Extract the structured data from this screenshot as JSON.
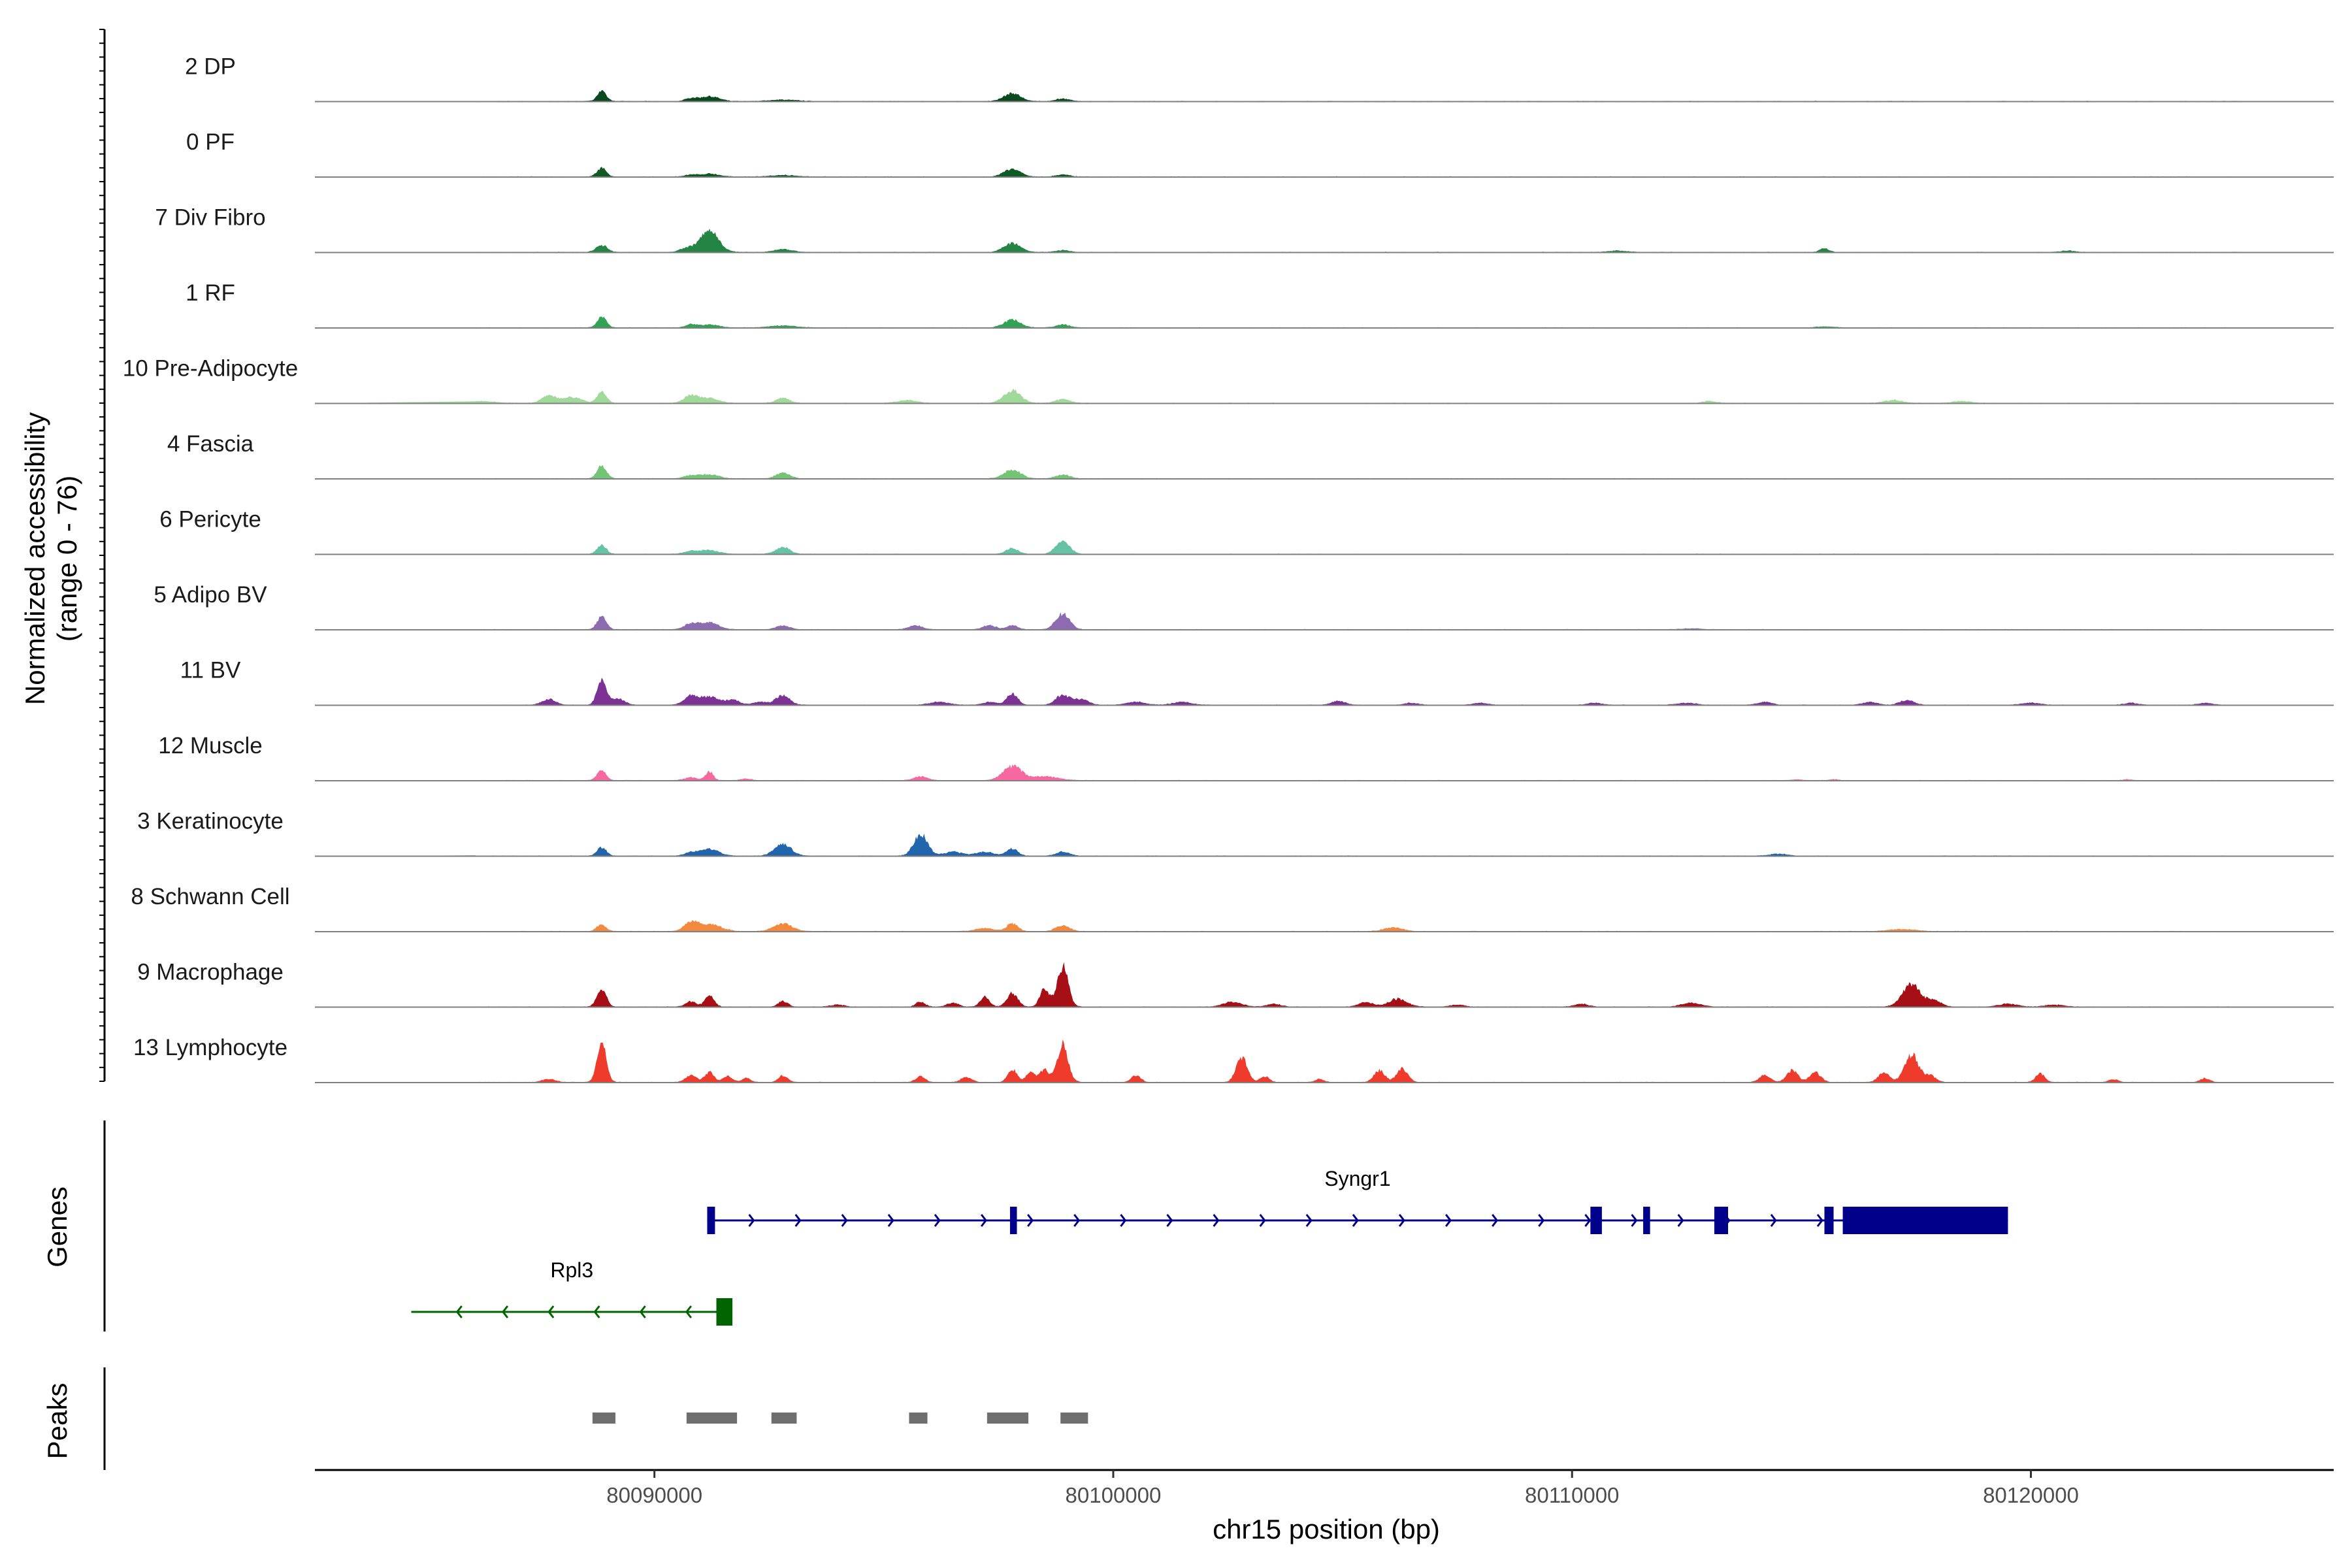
{
  "chart_data": {
    "type": "area",
    "ylabel_line1": "Normalized accessibility",
    "ylabel_line2": "(range 0 - 76)",
    "y_range": [
      0,
      76
    ],
    "xlabel": "chr15 position (bp)",
    "xlim": [
      80082600,
      80126600
    ],
    "xticks": [
      80090000,
      80100000,
      80110000,
      80120000
    ],
    "xtick_labels": [
      "80090000",
      "80100000",
      "80110000",
      "80120000"
    ],
    "tracks": [
      {
        "name": "2 DP",
        "color": "#0b4a1f",
        "peaks": [
          [
            80088850,
            10,
            100
          ],
          [
            80090800,
            3,
            120
          ],
          [
            80091200,
            5,
            200
          ],
          [
            80092800,
            1.5,
            300
          ],
          [
            80097800,
            8,
            180
          ],
          [
            80098900,
            2.5,
            150
          ]
        ]
      },
      {
        "name": "0 PF",
        "color": "#0f5a25",
        "peaks": [
          [
            80088850,
            9,
            100
          ],
          [
            80090800,
            2,
            120
          ],
          [
            80091200,
            3,
            200
          ],
          [
            80092800,
            1.5,
            300
          ],
          [
            80097800,
            8,
            180
          ],
          [
            80098900,
            2,
            150
          ]
        ]
      },
      {
        "name": "7 Div Fibro",
        "color": "#238443",
        "peaks": [
          [
            80088850,
            7,
            120
          ],
          [
            80091200,
            22,
            200
          ],
          [
            80090700,
            4,
            150
          ],
          [
            80092800,
            3,
            200
          ],
          [
            80097800,
            9,
            180
          ],
          [
            80098900,
            2,
            150
          ],
          [
            80115500,
            4,
            100
          ],
          [
            80111000,
            1.5,
            200
          ],
          [
            80120800,
            1.5,
            150
          ]
        ]
      },
      {
        "name": "1 RF",
        "color": "#31a354",
        "peaks": [
          [
            80088850,
            11,
            100
          ],
          [
            80090800,
            3,
            120
          ],
          [
            80091200,
            3,
            200
          ],
          [
            80092800,
            2,
            300
          ],
          [
            80097800,
            8,
            180
          ],
          [
            80098900,
            3,
            150
          ],
          [
            80115500,
            1,
            200
          ]
        ]
      },
      {
        "name": "10 Pre-Adipocyte",
        "color": "#a1d99b",
        "peaks": [
          [
            80088850,
            12,
            100
          ],
          [
            80087700,
            8,
            150
          ],
          [
            80088200,
            6,
            200
          ],
          [
            80090800,
            8,
            150
          ],
          [
            80091200,
            5,
            200
          ],
          [
            80092800,
            5,
            150
          ],
          [
            80095500,
            3,
            200
          ],
          [
            80097800,
            13,
            180
          ],
          [
            80098900,
            4,
            150
          ],
          [
            80113000,
            2,
            150
          ],
          [
            80117000,
            3,
            200
          ],
          [
            80118500,
            2,
            200
          ],
          [
            80085000,
            2,
            300
          ],
          [
            80086200,
            2,
            300
          ]
        ]
      },
      {
        "name": "4 Fascia",
        "color": "#74c476",
        "peaks": [
          [
            80088850,
            13,
            100
          ],
          [
            80090800,
            3,
            150
          ],
          [
            80091200,
            4,
            200
          ],
          [
            80092800,
            6,
            150
          ],
          [
            80097800,
            9,
            180
          ],
          [
            80098900,
            4,
            150
          ]
        ]
      },
      {
        "name": "6 Pericyte",
        "color": "#66c2a4",
        "peaks": [
          [
            80088850,
            9,
            100
          ],
          [
            80090800,
            3,
            150
          ],
          [
            80091200,
            4,
            200
          ],
          [
            80092800,
            7,
            150
          ],
          [
            80097800,
            6,
            130
          ],
          [
            80098900,
            13,
            150
          ]
        ]
      },
      {
        "name": "5 Adipo BV",
        "color": "#8c6bb1",
        "peaks": [
          [
            80088850,
            13,
            100
          ],
          [
            80090800,
            6,
            150
          ],
          [
            80091200,
            7,
            200
          ],
          [
            80092800,
            4,
            150
          ],
          [
            80095700,
            4,
            150
          ],
          [
            80097300,
            4,
            150
          ],
          [
            80097800,
            4,
            120
          ],
          [
            80098900,
            16,
            150
          ],
          [
            80112600,
            1,
            200
          ]
        ]
      },
      {
        "name": "11 BV",
        "color": "#7b3294",
        "peaks": [
          [
            80088850,
            25,
            100
          ],
          [
            80087700,
            6,
            150
          ],
          [
            80089200,
            6,
            150
          ],
          [
            80090800,
            9,
            150
          ],
          [
            80091200,
            8,
            200
          ],
          [
            80091700,
            5,
            150
          ],
          [
            80092800,
            10,
            150
          ],
          [
            80092300,
            3,
            150
          ],
          [
            80096200,
            3,
            200
          ],
          [
            80097300,
            3,
            150
          ],
          [
            80097800,
            11,
            120
          ],
          [
            80098900,
            10,
            150
          ],
          [
            80099300,
            6,
            150
          ],
          [
            80100500,
            3,
            200
          ],
          [
            80101500,
            3,
            200
          ],
          [
            80104900,
            4,
            150
          ],
          [
            80106500,
            2,
            150
          ],
          [
            80108000,
            2,
            150
          ],
          [
            80110500,
            2,
            150
          ],
          [
            80112500,
            2,
            200
          ],
          [
            80114200,
            3,
            150
          ],
          [
            80116500,
            3,
            150
          ],
          [
            80117300,
            5,
            150
          ],
          [
            80120000,
            2,
            200
          ],
          [
            80122200,
            2,
            150
          ],
          [
            80123800,
            2,
            150
          ]
        ]
      },
      {
        "name": "12 Muscle",
        "color": "#f768a1",
        "peaks": [
          [
            80088850,
            10,
            100
          ],
          [
            80090800,
            3,
            150
          ],
          [
            80091200,
            9,
            80
          ],
          [
            80092000,
            2,
            100
          ],
          [
            80095800,
            4,
            150
          ],
          [
            80097800,
            14,
            200
          ],
          [
            80098500,
            4,
            300
          ],
          [
            80114900,
            1,
            100
          ],
          [
            80115700,
            1,
            100
          ],
          [
            80122100,
            1,
            100
          ]
        ]
      },
      {
        "name": "3 Keratinocyte",
        "color": "#2166ac",
        "peaks": [
          [
            80088850,
            9,
            100
          ],
          [
            80090800,
            3,
            150
          ],
          [
            80091200,
            7,
            200
          ],
          [
            80092800,
            12,
            180
          ],
          [
            80095800,
            22,
            150
          ],
          [
            80096500,
            4,
            200
          ],
          [
            80097200,
            4,
            200
          ],
          [
            80097800,
            7,
            120
          ],
          [
            80098900,
            4,
            150
          ],
          [
            80114500,
            2,
            200
          ]
        ]
      },
      {
        "name": "8 Schwann Cell",
        "color": "#f3893e",
        "peaks": [
          [
            80088850,
            7,
            100
          ],
          [
            80090800,
            8,
            150
          ],
          [
            80091200,
            7,
            250
          ],
          [
            80092800,
            8,
            200
          ],
          [
            80097200,
            3,
            200
          ],
          [
            80097800,
            8,
            120
          ],
          [
            80098900,
            6,
            150
          ],
          [
            80106100,
            4,
            200
          ],
          [
            80117200,
            2,
            300
          ]
        ]
      },
      {
        "name": "9 Macrophage",
        "color": "#a50f15",
        "peaks": [
          [
            80088850,
            18,
            100
          ],
          [
            80090800,
            5,
            120
          ],
          [
            80091200,
            11,
            100
          ],
          [
            80092800,
            6,
            100
          ],
          [
            80094000,
            2,
            150
          ],
          [
            80095800,
            5,
            100
          ],
          [
            80096500,
            4,
            120
          ],
          [
            80097200,
            10,
            100
          ],
          [
            80097800,
            14,
            120
          ],
          [
            80098500,
            18,
            100
          ],
          [
            80098900,
            40,
            120
          ],
          [
            80102600,
            5,
            200
          ],
          [
            80103500,
            3,
            150
          ],
          [
            80106200,
            8,
            200
          ],
          [
            80105500,
            5,
            150
          ],
          [
            80107500,
            2,
            150
          ],
          [
            80110200,
            3,
            150
          ],
          [
            80112600,
            4,
            200
          ],
          [
            80117400,
            22,
            200
          ],
          [
            80117900,
            6,
            150
          ],
          [
            80119500,
            3,
            200
          ],
          [
            80120500,
            2,
            200
          ]
        ]
      },
      {
        "name": "13 Lymphocyte",
        "color": "#ef3b2c",
        "peaks": [
          [
            80088850,
            40,
            100
          ],
          [
            80084700,
            5,
            100
          ],
          [
            80085500,
            4,
            100
          ],
          [
            80087700,
            3,
            150
          ],
          [
            80090800,
            7,
            120
          ],
          [
            80091200,
            10,
            100
          ],
          [
            80091600,
            6,
            100
          ],
          [
            80092000,
            4,
            100
          ],
          [
            80092800,
            7,
            100
          ],
          [
            80095800,
            6,
            100
          ],
          [
            80096800,
            5,
            120
          ],
          [
            80097800,
            13,
            100
          ],
          [
            80098200,
            10,
            100
          ],
          [
            80098500,
            13,
            100
          ],
          [
            80098900,
            38,
            120
          ],
          [
            80100500,
            7,
            100
          ],
          [
            80102800,
            25,
            120
          ],
          [
            80103300,
            6,
            100
          ],
          [
            80104500,
            3,
            100
          ],
          [
            80105800,
            12,
            120
          ],
          [
            80106300,
            14,
            120
          ],
          [
            80114200,
            7,
            120
          ],
          [
            80114800,
            12,
            120
          ],
          [
            80115300,
            10,
            120
          ],
          [
            80116800,
            10,
            120
          ],
          [
            80117400,
            28,
            150
          ],
          [
            80117800,
            7,
            120
          ],
          [
            80120200,
            9,
            100
          ],
          [
            80121800,
            3,
            100
          ],
          [
            80123800,
            4,
            100
          ]
        ]
      }
    ],
    "genes_label": "Genes",
    "genes": [
      {
        "name": "Syngr1",
        "color": "#00008b",
        "strand": "+",
        "start": 80091150,
        "end": 80119500,
        "exons": [
          [
            80091150,
            80091320
          ],
          [
            80097750,
            80097900
          ],
          [
            80110400,
            80110650
          ],
          [
            80111550,
            80111700
          ],
          [
            80113100,
            80113400
          ],
          [
            80115500,
            80115700
          ],
          [
            80115900,
            80119500
          ]
        ]
      },
      {
        "name": "Rpl3",
        "color": "#006400",
        "strand": "-",
        "start": 80084700,
        "end": 80091700,
        "exons": [
          [
            80091350,
            80091700
          ]
        ]
      }
    ],
    "peaks_label": "Peaks",
    "peak_color": "#6e6e6e",
    "peak_regions": [
      [
        80088650,
        80089150
      ],
      [
        80090700,
        80091800
      ],
      [
        80092550,
        80093100
      ],
      [
        80095550,
        80095950
      ],
      [
        80097250,
        80098150
      ],
      [
        80098850,
        80099450
      ]
    ]
  }
}
